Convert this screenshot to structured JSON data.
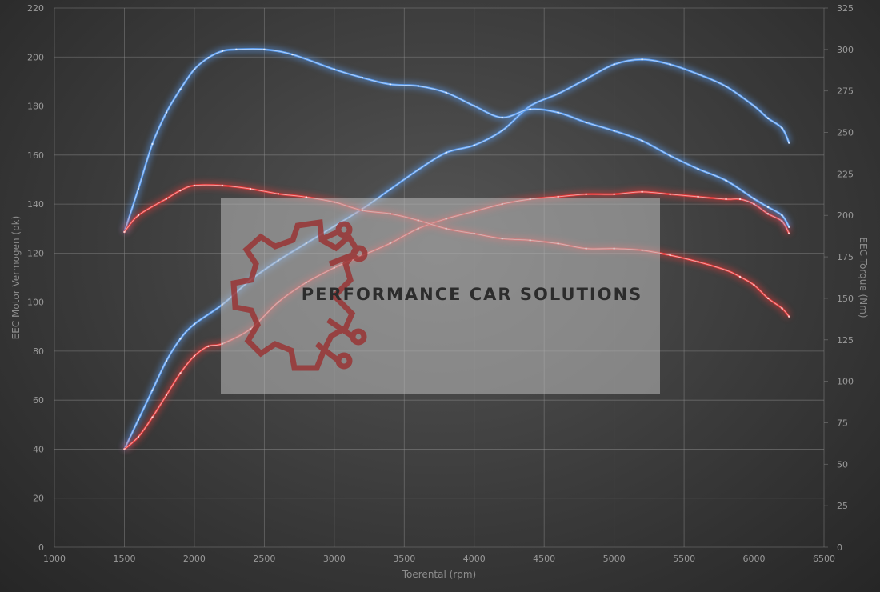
{
  "chart_data": {
    "type": "line",
    "xlabel": "Toerental (rpm)",
    "ylabel_left": "EEC Motor Vermogen (pk)",
    "ylabel_right": "EEC Torque (Nm)",
    "xlim": [
      1000,
      6500
    ],
    "x_ticks": [
      1000,
      1500,
      2000,
      2500,
      3000,
      3500,
      4000,
      4500,
      5000,
      5500,
      6000,
      6500
    ],
    "ylim_left": [
      0,
      220
    ],
    "y_ticks_left": [
      0,
      20,
      40,
      60,
      80,
      100,
      120,
      140,
      160,
      180,
      200,
      220
    ],
    "ylim_right": [
      0,
      325
    ],
    "y_ticks_right": [
      0,
      25,
      50,
      75,
      100,
      125,
      150,
      175,
      200,
      225,
      250,
      275,
      300,
      325
    ],
    "grid": true,
    "colors": {
      "tuned": "#5a9cf0",
      "stock": "#e23a3a"
    },
    "series": [
      {
        "axis": "left",
        "color": "#5a9cf0",
        "x": [
          1500,
          1600,
          1700,
          1800,
          1900,
          2000,
          2200,
          2400,
          2600,
          2800,
          3000,
          3200,
          3400,
          3600,
          3800,
          4000,
          4200,
          4400,
          4600,
          4800,
          5000,
          5200,
          5400,
          5600,
          5800,
          6000,
          6100,
          6200,
          6250
        ],
        "y": [
          40,
          52,
          64,
          76,
          85,
          91,
          99,
          109,
          117,
          124,
          131,
          138,
          146,
          154,
          161,
          164,
          170,
          180,
          185,
          191,
          197,
          199,
          197,
          193,
          188,
          180,
          175,
          171,
          165
        ]
      },
      {
        "axis": "left",
        "color": "#e23a3a",
        "x": [
          1500,
          1600,
          1700,
          1800,
          1900,
          2000,
          2100,
          2200,
          2400,
          2600,
          2800,
          3000,
          3200,
          3400,
          3600,
          3800,
          4000,
          4200,
          4400,
          4600,
          4800,
          5000,
          5200,
          5400,
          5600,
          5800,
          5900,
          6000,
          6100,
          6200,
          6250
        ],
        "y": [
          40,
          45,
          53,
          62,
          71,
          78,
          82,
          83,
          89,
          100,
          108,
          114,
          119,
          124,
          130,
          134,
          137,
          140,
          142,
          143,
          144,
          144,
          145,
          144,
          143,
          142,
          142,
          140,
          136,
          133,
          128
        ]
      },
      {
        "axis": "right",
        "color": "#5a9cf0",
        "x": [
          1500,
          1600,
          1700,
          1800,
          1900,
          2000,
          2100,
          2200,
          2300,
          2500,
          2700,
          3000,
          3200,
          3400,
          3600,
          3800,
          4000,
          4200,
          4400,
          4600,
          4800,
          5000,
          5200,
          5400,
          5600,
          5800,
          6000,
          6100,
          6200,
          6250
        ],
        "y": [
          190,
          216,
          243,
          262,
          276,
          288,
          295,
          299,
          300,
          300,
          297,
          288,
          283,
          279,
          278,
          274,
          266,
          259,
          264,
          262,
          256,
          251,
          245,
          236,
          228,
          221,
          210,
          205,
          200,
          193
        ]
      },
      {
        "axis": "right",
        "color": "#e23a3a",
        "x": [
          1500,
          1600,
          1800,
          1900,
          2000,
          2200,
          2400,
          2600,
          2800,
          3000,
          3200,
          3400,
          3600,
          3800,
          4000,
          4200,
          4400,
          4600,
          4800,
          5000,
          5200,
          5400,
          5600,
          5800,
          5900,
          6000,
          6100,
          6200,
          6250
        ],
        "y": [
          190,
          200,
          210,
          215,
          218,
          218,
          216,
          213,
          211,
          208,
          203,
          201,
          197,
          192,
          189,
          186,
          185,
          183,
          180,
          180,
          179,
          176,
          172,
          167,
          163,
          158,
          150,
          144,
          139
        ]
      }
    ]
  },
  "watermark": {
    "text": "PERFORMANCE CAR SOLUTIONS",
    "icon": "gear-circuit-logo-icon"
  }
}
